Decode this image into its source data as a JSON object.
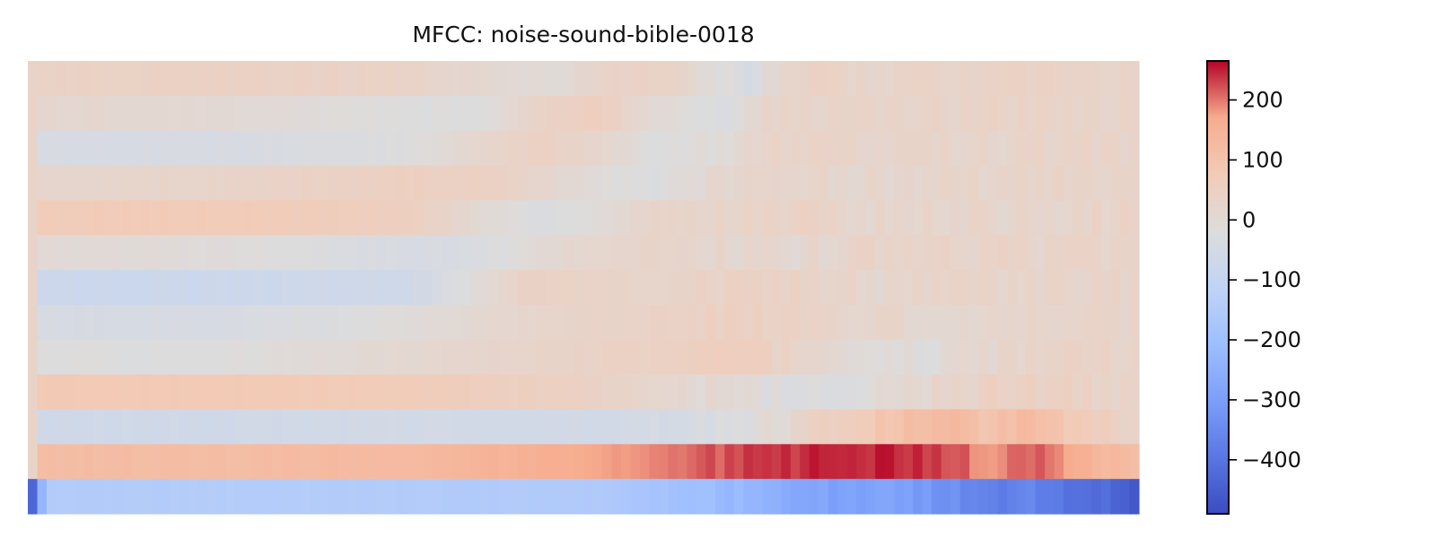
{
  "chart_data": {
    "type": "heatmap",
    "title": "MFCC: noise-sound-bible-0018",
    "xlabel": "",
    "ylabel": "",
    "axes_visible": false,
    "n_coefficients": 13,
    "n_frames": 118,
    "colormap": "coolwarm",
    "colorbar": {
      "range": [
        -490,
        265
      ],
      "ticks": [
        200,
        100,
        0,
        -100,
        -200,
        -300,
        -400
      ],
      "tick_labels": [
        "200",
        "100",
        "0",
        "−100",
        "−200",
        "−300",
        "−400"
      ],
      "location": "right"
    },
    "rows_top_to_bottom": [
      {
        "coef": 12,
        "knots": [
          [
            0,
            30
          ],
          [
            1,
            40
          ],
          [
            20,
            45
          ],
          [
            40,
            35
          ],
          [
            48,
            10
          ],
          [
            56,
            -5
          ],
          [
            62,
            40
          ],
          [
            68,
            35
          ],
          [
            72,
            -10
          ],
          [
            76,
            -40
          ],
          [
            80,
            30
          ],
          [
            86,
            30
          ],
          [
            118,
            30
          ]
        ]
      },
      {
        "coef": 11,
        "knots": [
          [
            0,
            30
          ],
          [
            1,
            15
          ],
          [
            20,
            5
          ],
          [
            40,
            -20
          ],
          [
            48,
            -20
          ],
          [
            54,
            40
          ],
          [
            60,
            60
          ],
          [
            66,
            0
          ],
          [
            74,
            -30
          ],
          [
            78,
            30
          ],
          [
            86,
            35
          ],
          [
            118,
            30
          ]
        ]
      },
      {
        "coef": 10,
        "knots": [
          [
            0,
            30
          ],
          [
            1,
            -40
          ],
          [
            20,
            -40
          ],
          [
            40,
            -20
          ],
          [
            48,
            20
          ],
          [
            54,
            45
          ],
          [
            60,
            20
          ],
          [
            66,
            -20
          ],
          [
            72,
            -10
          ],
          [
            78,
            30
          ],
          [
            90,
            20
          ],
          [
            118,
            30
          ]
        ]
      },
      {
        "coef": 9,
        "knots": [
          [
            0,
            30
          ],
          [
            1,
            20
          ],
          [
            20,
            30
          ],
          [
            40,
            50
          ],
          [
            48,
            45
          ],
          [
            54,
            20
          ],
          [
            60,
            -10
          ],
          [
            66,
            -25
          ],
          [
            72,
            10
          ],
          [
            80,
            20
          ],
          [
            118,
            30
          ]
        ]
      },
      {
        "coef": 8,
        "knots": [
          [
            0,
            30
          ],
          [
            1,
            70
          ],
          [
            20,
            75
          ],
          [
            40,
            55
          ],
          [
            48,
            0
          ],
          [
            54,
            -30
          ],
          [
            60,
            -10
          ],
          [
            66,
            30
          ],
          [
            80,
            40
          ],
          [
            90,
            20
          ],
          [
            118,
            30
          ]
        ]
      },
      {
        "coef": 7,
        "knots": [
          [
            0,
            30
          ],
          [
            1,
            0
          ],
          [
            20,
            -10
          ],
          [
            40,
            -40
          ],
          [
            48,
            -30
          ],
          [
            56,
            10
          ],
          [
            66,
            30
          ],
          [
            80,
            10
          ],
          [
            90,
            30
          ],
          [
            118,
            30
          ]
        ]
      },
      {
        "coef": 6,
        "knots": [
          [
            0,
            30
          ],
          [
            1,
            -75
          ],
          [
            20,
            -75
          ],
          [
            40,
            -60
          ],
          [
            46,
            -20
          ],
          [
            52,
            40
          ],
          [
            66,
            30
          ],
          [
            80,
            40
          ],
          [
            90,
            20
          ],
          [
            118,
            30
          ]
        ]
      },
      {
        "coef": 5,
        "knots": [
          [
            0,
            30
          ],
          [
            1,
            -40
          ],
          [
            20,
            -40
          ],
          [
            40,
            -10
          ],
          [
            52,
            20
          ],
          [
            66,
            40
          ],
          [
            80,
            50
          ],
          [
            90,
            20
          ],
          [
            100,
            10
          ],
          [
            110,
            25
          ],
          [
            118,
            30
          ]
        ]
      },
      {
        "coef": 4,
        "knots": [
          [
            0,
            30
          ],
          [
            1,
            -20
          ],
          [
            20,
            -20
          ],
          [
            40,
            10
          ],
          [
            60,
            40
          ],
          [
            76,
            50
          ],
          [
            84,
            10
          ],
          [
            92,
            -10
          ],
          [
            96,
            -10
          ],
          [
            102,
            20
          ],
          [
            110,
            40
          ],
          [
            118,
            30
          ]
        ]
      },
      {
        "coef": 3,
        "knots": [
          [
            0,
            30
          ],
          [
            1,
            80
          ],
          [
            20,
            80
          ],
          [
            40,
            70
          ],
          [
            60,
            40
          ],
          [
            76,
            -10
          ],
          [
            86,
            -30
          ],
          [
            90,
            0
          ],
          [
            96,
            20
          ],
          [
            102,
            40
          ],
          [
            110,
            40
          ],
          [
            118,
            30
          ]
        ]
      },
      {
        "coef": 2,
        "knots": [
          [
            0,
            30
          ],
          [
            1,
            -60
          ],
          [
            20,
            -60
          ],
          [
            40,
            -55
          ],
          [
            60,
            -55
          ],
          [
            72,
            -40
          ],
          [
            80,
            10
          ],
          [
            88,
            80
          ],
          [
            96,
            130
          ],
          [
            102,
            100
          ],
          [
            106,
            130
          ],
          [
            110,
            80
          ],
          [
            118,
            30
          ]
        ]
      },
      {
        "coef": 1,
        "knots": [
          [
            0,
            30
          ],
          [
            1,
            120
          ],
          [
            20,
            120
          ],
          [
            40,
            130
          ],
          [
            60,
            170
          ],
          [
            68,
            200
          ],
          [
            74,
            220
          ],
          [
            80,
            240
          ],
          [
            84,
            250
          ],
          [
            88,
            250
          ],
          [
            92,
            250
          ],
          [
            96,
            235
          ],
          [
            102,
            180
          ],
          [
            106,
            220
          ],
          [
            112,
            150
          ],
          [
            117,
            120
          ],
          [
            118,
            30
          ]
        ]
      },
      {
        "coef": 0,
        "knots": [
          [
            0,
            -430
          ],
          [
            1,
            -230
          ],
          [
            2,
            -150
          ],
          [
            20,
            -145
          ],
          [
            40,
            -150
          ],
          [
            60,
            -155
          ],
          [
            68,
            -190
          ],
          [
            74,
            -220
          ],
          [
            78,
            -240
          ],
          [
            82,
            -270
          ],
          [
            86,
            -300
          ],
          [
            90,
            -280
          ],
          [
            94,
            -310
          ],
          [
            98,
            -340
          ],
          [
            102,
            -380
          ],
          [
            106,
            -360
          ],
          [
            110,
            -400
          ],
          [
            114,
            -420
          ],
          [
            116,
            -460
          ],
          [
            118,
            -470
          ]
        ]
      }
    ]
  }
}
